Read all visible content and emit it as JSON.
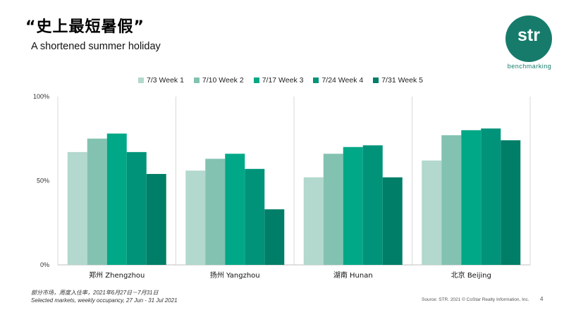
{
  "header": {
    "title": "“史上最短暑假”",
    "subtitle": "A shortened summer holiday"
  },
  "logo": {
    "text": "str",
    "sub": "benchmarking",
    "color": "#167b6b"
  },
  "footer": {
    "note_cn": "部分市场，周度入住率，2021年6月27日－7月31日",
    "note_en": "Selected markets, weekly occupancy, 27 Jun - 31 Jul 2021",
    "source": "Source: STR. 2021 © CoStar Realty Information, Inc.",
    "page": "4"
  },
  "chart_data": {
    "type": "bar",
    "title": "",
    "xlabel": "",
    "ylabel": "",
    "ylim": [
      0,
      100
    ],
    "y_ticks": [
      "0%",
      "50%",
      "100%"
    ],
    "legend_position": "top",
    "grid": "vertical separators between groups",
    "categories": [
      "郑州 Zhengzhou",
      "扬州 Yangzhou",
      "湖南 Hunan",
      "北京 Beijing"
    ],
    "series": [
      {
        "name": "7/3 Week 1",
        "color": "#b3d8cd",
        "values": [
          67,
          56,
          52,
          62
        ]
      },
      {
        "name": "7/10 Week 2",
        "color": "#83c2b1",
        "values": [
          75,
          63,
          66,
          77
        ]
      },
      {
        "name": "7/17 Week 3",
        "color": "#00a887",
        "values": [
          78,
          66,
          70,
          80
        ]
      },
      {
        "name": "7/24 Week 4",
        "color": "#00937a",
        "values": [
          67,
          57,
          71,
          81
        ]
      },
      {
        "name": "7/31 Week 5",
        "color": "#007e67",
        "values": [
          54,
          33,
          52,
          74
        ]
      }
    ]
  }
}
